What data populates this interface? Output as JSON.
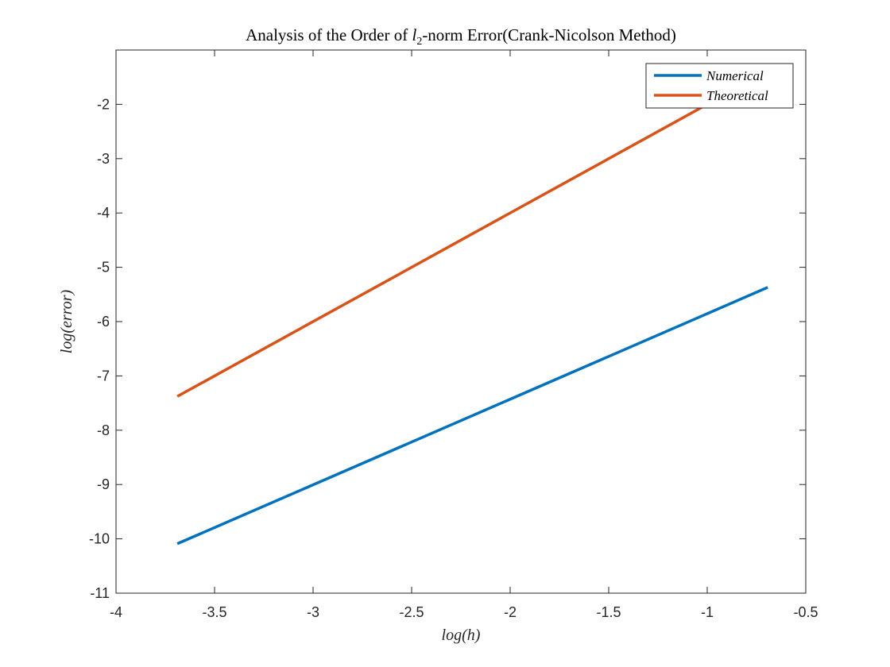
{
  "chart_data": {
    "type": "line",
    "title_pre": "Analysis of the Order of ",
    "title_var": "l",
    "title_sub": "2",
    "title_post": "-norm Error(Crank-Nicolson Method)",
    "xlabel": "log(h)",
    "ylabel": "log(error)",
    "xlim": [
      -4,
      -0.5
    ],
    "ylim": [
      -11,
      -1
    ],
    "xticks": [
      -4,
      -3.5,
      -3,
      -2.5,
      -2,
      -1.5,
      -1,
      -0.5
    ],
    "yticks": [
      -11,
      -10,
      -9,
      -8,
      -7,
      -6,
      -5,
      -4,
      -3,
      -2
    ],
    "xtick_labels": [
      "-4",
      "-3.5",
      "-3",
      "-2.5",
      "-2",
      "-1.5",
      "-1",
      "-0.5"
    ],
    "ytick_labels": [
      "-11",
      "-10",
      "-9",
      "-8",
      "-7",
      "-6",
      "-5",
      "-4",
      "-3",
      "-2"
    ],
    "grid": false,
    "legend_position": "top-right",
    "series": [
      {
        "name": "Numerical",
        "color": "#0072BD",
        "x": [
          -3.689,
          -0.693
        ],
        "y": [
          -10.09,
          -5.37
        ]
      },
      {
        "name": "Theoretical",
        "color": "#D95319",
        "x": [
          -3.689,
          -0.693
        ],
        "y": [
          -7.378,
          -1.386
        ]
      }
    ]
  }
}
